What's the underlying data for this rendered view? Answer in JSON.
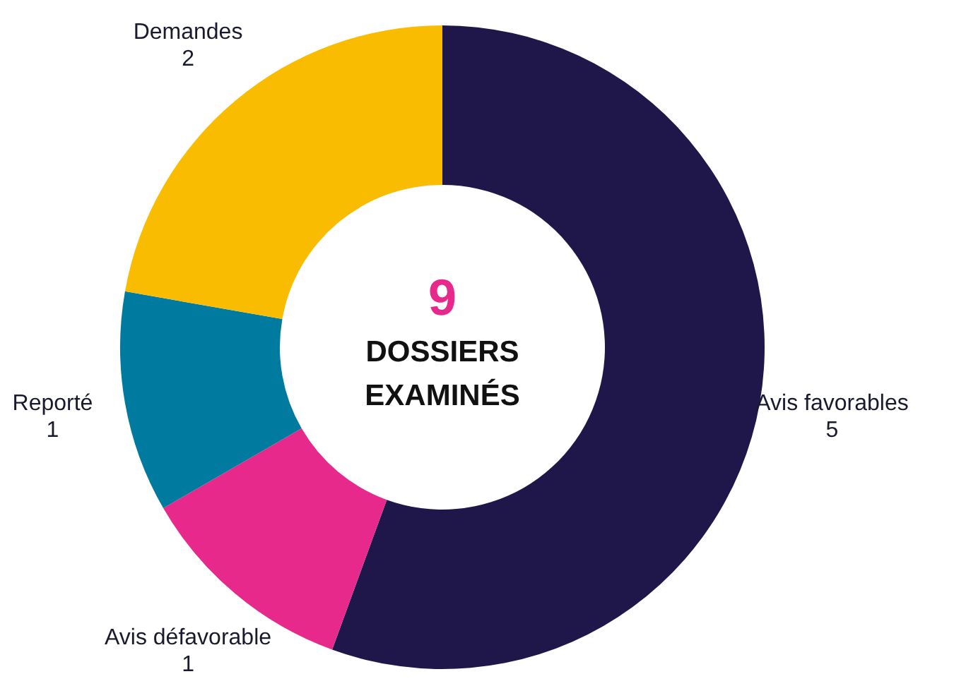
{
  "chart_data": {
    "type": "donut",
    "categories": [
      "Avis favorables",
      "Avis défavorable",
      "Reporté",
      "Demandes"
    ],
    "values": [
      5,
      1,
      1,
      2
    ],
    "colors": [
      "#1f174a",
      "#e6298a",
      "#007b9f",
      "#f9bc00"
    ],
    "data_labels": true,
    "annotations": [
      "9",
      "DOSSIERS EXAMINÉS"
    ]
  }
}
